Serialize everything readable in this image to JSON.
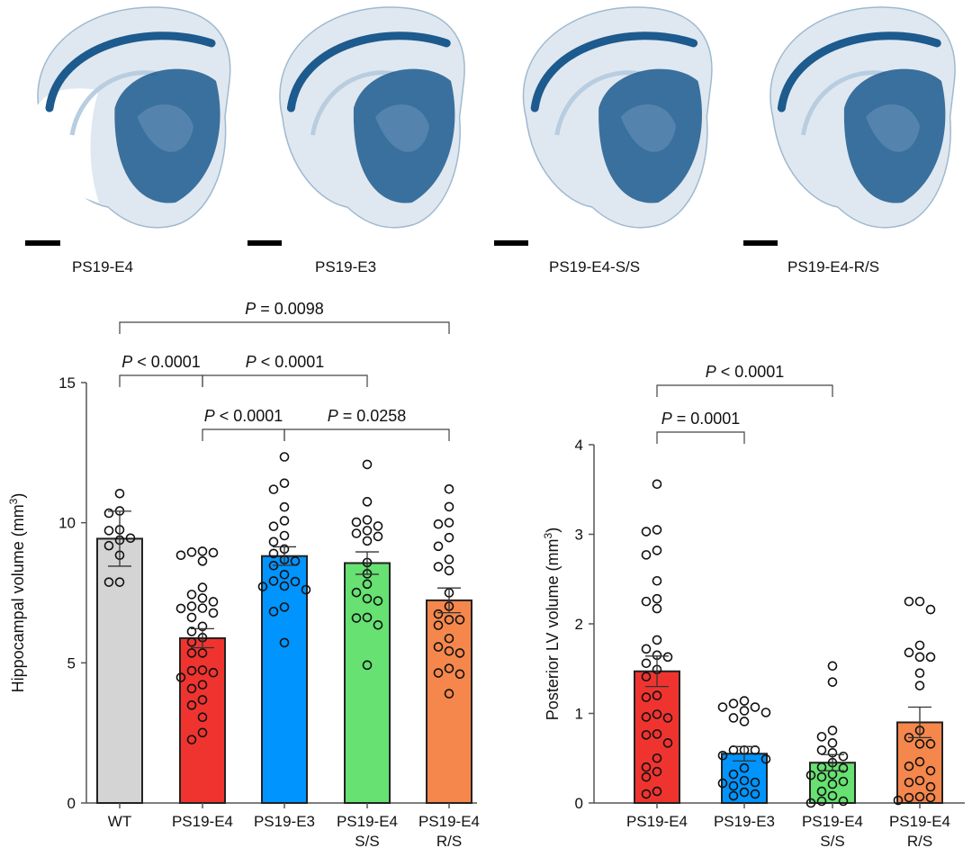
{
  "panel_labels": {
    "images": [
      "PS19-E4",
      "PS19-E3",
      "PS19-E4-S/S",
      "PS19-E4-R/S"
    ]
  },
  "colors": {
    "WT": "#d4d4d4",
    "PS19-E4": "#ef3430",
    "PS19-E3": "#0094ff",
    "PS19-E4 S/S": "#66e172",
    "PS19-E4 R/S": "#f5874c",
    "stain_dark": "#1d5a8e",
    "stain_light": "#dfe8f0"
  },
  "chart_data": [
    {
      "type": "bar",
      "ylabel": "Hippocampal volume (mm",
      "ylabel_sup": "3",
      "ylabel_close": ")",
      "ylim": [
        0,
        15
      ],
      "yticks": [
        "0",
        "5",
        "10",
        "15"
      ],
      "categories": [
        [
          "WT"
        ],
        [
          "PS19-E4"
        ],
        [
          "PS19-E3"
        ],
        [
          "PS19-E4",
          "S/S"
        ],
        [
          "PS19-E4",
          "R/S"
        ]
      ],
      "color_keys": [
        "WT",
        "PS19-E4",
        "PS19-E3",
        "PS19-E4 S/S",
        "PS19-E4 R/S"
      ],
      "means": [
        9.43,
        5.88,
        8.81,
        8.56,
        7.23
      ],
      "sem": [
        0.98,
        0.34,
        0.33,
        0.4,
        0.44
      ],
      "points": [
        [
          11.04,
          10.42,
          10.34,
          9.75,
          9.72,
          9.45,
          9.38,
          9.18,
          8.84,
          7.88,
          7.88
        ],
        [
          8.98,
          8.95,
          8.93,
          8.84,
          8.63,
          7.69,
          7.44,
          7.31,
          7.18,
          7.02,
          6.95,
          6.94,
          6.78,
          6.62,
          6.3,
          6.12,
          5.9,
          5.74,
          5.35,
          5.35,
          4.74,
          4.72,
          4.65,
          4.48,
          4.22,
          4.08,
          3.68,
          3.49,
          3.06,
          2.51,
          2.26
        ],
        [
          12.35,
          11.41,
          11.19,
          10.56,
          10.07,
          9.87,
          9.54,
          9.32,
          9.06,
          8.9,
          8.68,
          8.63,
          8.47,
          8.15,
          7.92,
          7.9,
          7.74,
          7.72,
          7.61,
          6.99,
          6.83,
          5.72
        ],
        [
          12.08,
          10.75,
          10.1,
          10.02,
          9.88,
          9.72,
          9.62,
          9.51,
          9.35,
          8.58,
          8.18,
          7.81,
          7.51,
          7.29,
          7.21,
          6.62,
          6.6,
          6.35,
          4.92
        ],
        [
          11.2,
          10.57,
          10.0,
          9.95,
          9.47,
          9.16,
          8.69,
          8.43,
          8.29,
          7.5,
          7.02,
          6.74,
          6.54,
          6.54,
          6.34,
          5.87,
          5.57,
          5.42,
          5.35,
          4.8,
          4.64,
          4.6,
          3.9
        ]
      ],
      "comparisons": [
        {
          "from": 0,
          "to": 4,
          "label": "P = 0.0098",
          "level": 3
        },
        {
          "from": 0,
          "to": 1,
          "label": "P < 0.0001",
          "level": 2
        },
        {
          "from": 1,
          "to": 3,
          "label": "P < 0.0001",
          "level": 2
        },
        {
          "from": 1,
          "to": 2,
          "label": "P < 0.0001",
          "level": 1
        },
        {
          "from": 2,
          "to": 4,
          "label": "P = 0.0258",
          "level": 1
        }
      ]
    },
    {
      "type": "bar",
      "ylabel": "Posterior LV volume (mm",
      "ylabel_sup": "3",
      "ylabel_close": ")",
      "ylim": [
        0,
        4
      ],
      "yticks": [
        "0",
        "1",
        "2",
        "3",
        "4"
      ],
      "categories": [
        [
          "PS19-E4"
        ],
        [
          "PS19-E3"
        ],
        [
          "PS19-E4",
          "S/S"
        ],
        [
          "PS19-E4",
          "R/S"
        ]
      ],
      "color_keys": [
        "PS19-E4",
        "PS19-E3",
        "PS19-E4 S/S",
        "PS19-E4 R/S"
      ],
      "means": [
        1.47,
        0.55,
        0.45,
        0.9
      ],
      "sem": [
        0.17,
        0.08,
        0.09,
        0.17
      ],
      "points": [
        [
          3.56,
          3.05,
          3.03,
          2.82,
          2.77,
          2.48,
          2.28,
          2.25,
          2.17,
          1.82,
          1.72,
          1.65,
          1.63,
          1.56,
          1.49,
          1.41,
          1.2,
          1.18,
          0.99,
          0.96,
          0.95,
          0.77,
          0.76,
          0.67,
          0.5,
          0.4,
          0.35,
          0.29,
          0.13,
          0.1
        ],
        [
          1.14,
          1.11,
          1.07,
          1.07,
          1.03,
          1.01,
          0.95,
          0.91,
          0.59,
          0.59,
          0.59,
          0.53,
          0.49,
          0.39,
          0.32,
          0.25,
          0.23,
          0.22,
          0.19,
          0.12,
          0.1,
          0.08
        ],
        [
          1.53,
          1.35,
          0.81,
          0.74,
          0.67,
          0.59,
          0.56,
          0.52,
          0.45,
          0.4,
          0.39,
          0.32,
          0.31,
          0.29,
          0.24,
          0.21,
          0.13,
          0.08,
          0.02,
          0.02,
          0.0
        ],
        [
          2.25,
          2.25,
          2.16,
          1.76,
          1.68,
          1.63,
          1.63,
          1.45,
          1.31,
          0.81,
          0.73,
          0.66,
          0.66,
          0.46,
          0.41,
          0.36,
          0.25,
          0.23,
          0.18,
          0.07,
          0.06,
          0.06,
          0.03
        ]
      ],
      "comparisons": [
        {
          "from": 0,
          "to": 2,
          "label": "P < 0.0001",
          "level": 2
        },
        {
          "from": 0,
          "to": 1,
          "label": "P = 0.0001",
          "level": 1
        }
      ]
    }
  ]
}
